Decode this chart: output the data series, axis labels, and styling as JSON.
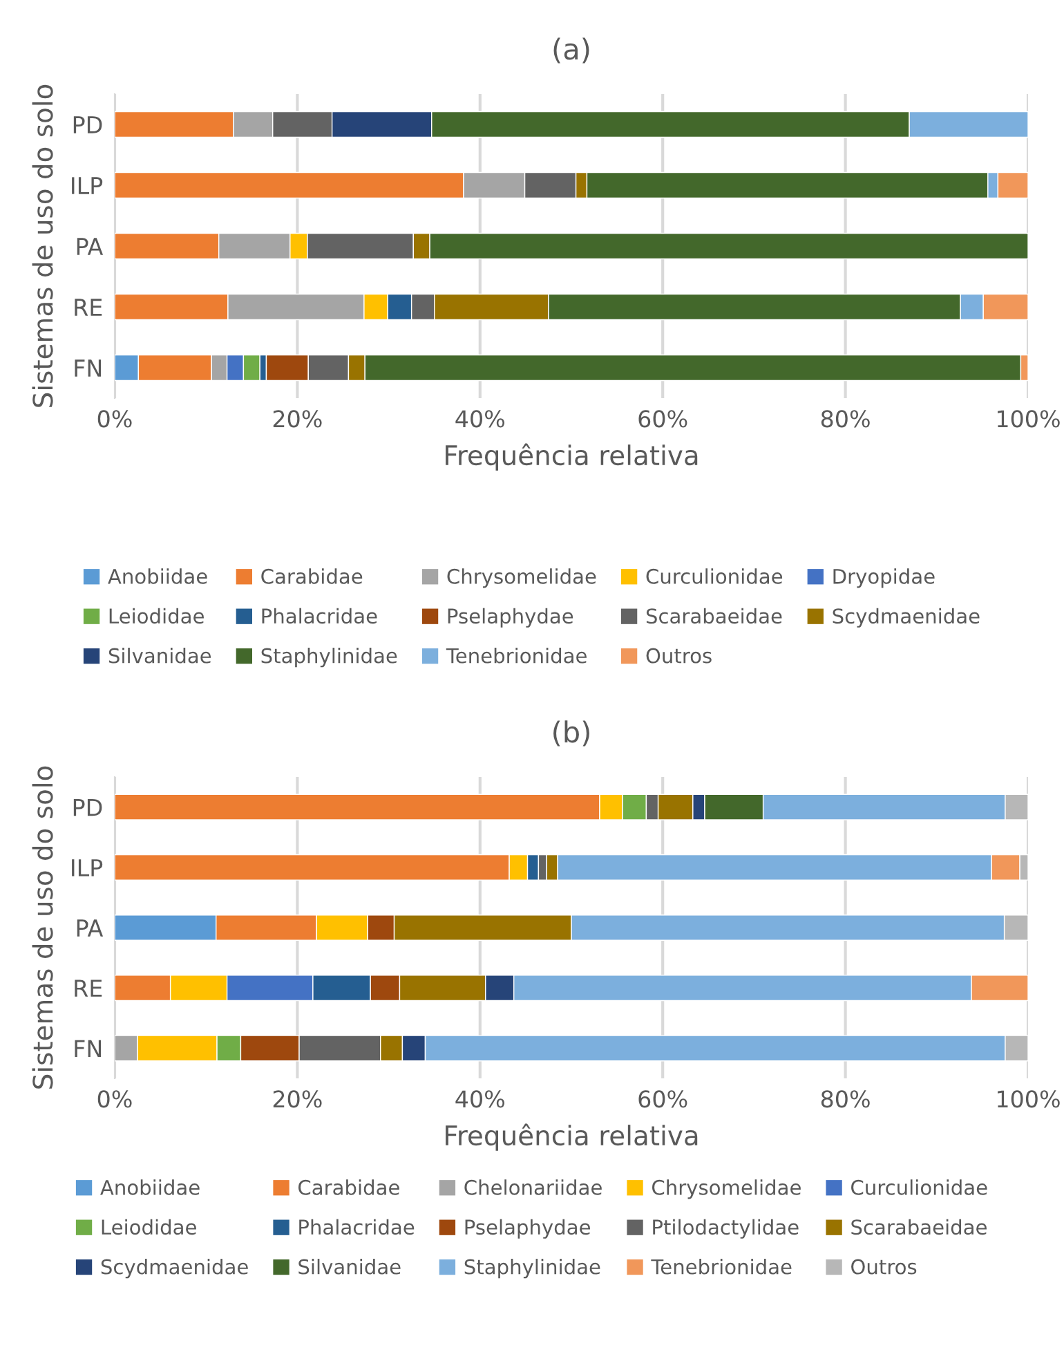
{
  "chart_data": [
    {
      "type": "bar",
      "title": "(a)",
      "xlabel": "Frequência relativa",
      "ylabel": "Sistemas de uso do solo",
      "orientation": "horizontal",
      "stacked": true,
      "grid": "x",
      "legend": "bottom",
      "categories": [
        "PD",
        "ILP",
        "PA",
        "RE",
        "FN"
      ],
      "xlim": [
        0,
        100
      ],
      "xticks": [
        {
          "value": 0,
          "label": "0%"
        },
        {
          "value": 20,
          "label": "20%"
        },
        {
          "value": 40,
          "label": "40%"
        },
        {
          "value": 60,
          "label": "60%"
        },
        {
          "value": 80,
          "label": "80%"
        },
        {
          "value": 100,
          "label": "100%"
        }
      ],
      "series": [
        {
          "name": "Anobiidae",
          "color": "#5b9bd5",
          "values": [
            null,
            null,
            null,
            null,
            2.6
          ]
        },
        {
          "name": "Carabidae",
          "color": "#ed7d31",
          "values": [
            13.0,
            38.2,
            11.4,
            12.4,
            8.0
          ]
        },
        {
          "name": "Chrysomelidae",
          "color": "#a5a5a5",
          "values": [
            4.3,
            6.7,
            7.8,
            14.9,
            1.7
          ]
        },
        {
          "name": "Curculionidae",
          "color": "#ffc000",
          "values": [
            null,
            null,
            1.9,
            2.6,
            null
          ]
        },
        {
          "name": "Dryopidae",
          "color": "#4472c4",
          "values": [
            null,
            null,
            null,
            null,
            1.8
          ]
        },
        {
          "name": "Leiodidae",
          "color": "#70ad47",
          "values": [
            null,
            null,
            null,
            null,
            1.8
          ]
        },
        {
          "name": "Phalacridae",
          "color": "#255e91",
          "values": [
            null,
            null,
            null,
            2.6,
            0.7
          ]
        },
        {
          "name": "Pselaphydae",
          "color": "#9e480e",
          "values": [
            null,
            null,
            null,
            null,
            4.6
          ]
        },
        {
          "name": "Scarabaeidae",
          "color": "#636363",
          "values": [
            6.5,
            5.6,
            11.6,
            2.5,
            4.4
          ]
        },
        {
          "name": "Scydmaenidae",
          "color": "#997300",
          "values": [
            null,
            1.2,
            1.8,
            12.5,
            1.8
          ]
        },
        {
          "name": "Silvanidae",
          "color": "#264478",
          "values": [
            10.9,
            null,
            null,
            null,
            null
          ]
        },
        {
          "name": "Staphylinidae",
          "color": "#43682b",
          "values": [
            52.3,
            43.9,
            65.5,
            45.1,
            71.8
          ]
        },
        {
          "name": "Tenebrionidae",
          "color": "#7cafdd",
          "values": [
            13.0,
            1.1,
            null,
            2.5,
            null
          ]
        },
        {
          "name": "Outros",
          "color": "#f1975a",
          "values": [
            null,
            3.3,
            null,
            4.9,
            0.8
          ]
        }
      ]
    },
    {
      "type": "bar",
      "title": "(b)",
      "xlabel": "Frequência relativa",
      "ylabel": "Sistemas de uso do solo",
      "orientation": "horizontal",
      "stacked": true,
      "grid": "x",
      "legend": "bottom",
      "categories": [
        "PD",
        "ILP",
        "PA",
        "RE",
        "FN"
      ],
      "xlim": [
        0,
        100
      ],
      "xticks": [
        {
          "value": 0,
          "label": "0%"
        },
        {
          "value": 20,
          "label": "20%"
        },
        {
          "value": 40,
          "label": "40%"
        },
        {
          "value": 60,
          "label": "60%"
        },
        {
          "value": 80,
          "label": "80%"
        },
        {
          "value": 100,
          "label": "100%"
        }
      ],
      "series": [
        {
          "name": "Anobiidae",
          "color": "#5b9bd5",
          "values": [
            null,
            null,
            11.1,
            null,
            null
          ]
        },
        {
          "name": "Carabidae",
          "color": "#ed7d31",
          "values": [
            53.1,
            43.2,
            11.0,
            6.1,
            null
          ]
        },
        {
          "name": "Chelonariidae",
          "color": "#a5a5a5",
          "values": [
            null,
            null,
            null,
            null,
            2.5
          ]
        },
        {
          "name": "Chrysomelidae",
          "color": "#ffc000",
          "values": [
            2.5,
            2.0,
            5.6,
            6.2,
            8.7
          ]
        },
        {
          "name": "Curculionidae",
          "color": "#4472c4",
          "values": [
            null,
            null,
            null,
            9.4,
            null
          ]
        },
        {
          "name": "Leiodidae",
          "color": "#70ad47",
          "values": [
            2.6,
            null,
            null,
            null,
            2.6
          ]
        },
        {
          "name": "Phalacridae",
          "color": "#255e91",
          "values": [
            null,
            1.2,
            null,
            6.3,
            null
          ]
        },
        {
          "name": "Pselaphydae",
          "color": "#9e480e",
          "values": [
            null,
            null,
            2.9,
            3.2,
            6.4
          ]
        },
        {
          "name": "Ptilodactylidae",
          "color": "#636363",
          "values": [
            1.3,
            0.9,
            null,
            null,
            8.9
          ]
        },
        {
          "name": "Scarabaeidae",
          "color": "#997300",
          "values": [
            3.8,
            1.2,
            19.4,
            9.4,
            2.4
          ]
        },
        {
          "name": "Scydmaenidae",
          "color": "#264478",
          "values": [
            1.3,
            null,
            null,
            3.1,
            2.5
          ]
        },
        {
          "name": "Silvanidae",
          "color": "#43682b",
          "values": [
            6.4,
            null,
            null,
            null,
            null
          ]
        },
        {
          "name": "Staphylinidae",
          "color": "#7cafdd",
          "values": [
            26.5,
            47.5,
            47.4,
            50.1,
            63.5
          ]
        },
        {
          "name": "Tenebrionidae",
          "color": "#f1975a",
          "values": [
            null,
            3.1,
            null,
            6.2,
            null
          ]
        },
        {
          "name": "Outros",
          "color": "#b7b7b7",
          "values": [
            2.5,
            0.9,
            2.6,
            null,
            2.5
          ]
        }
      ]
    }
  ]
}
